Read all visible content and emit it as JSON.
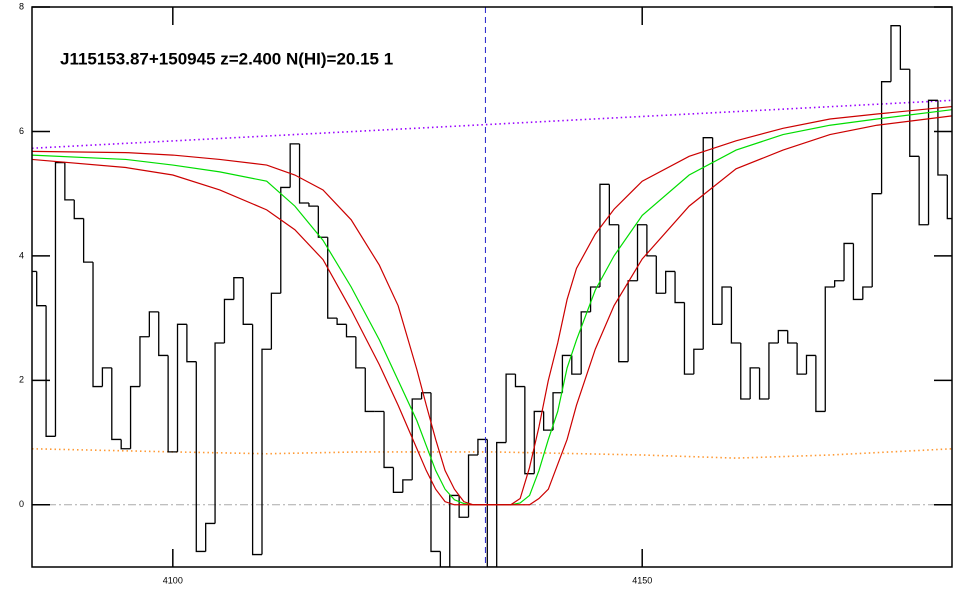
{
  "chart_data": {
    "type": "line",
    "title": "J115153.87+150945 z=2.400 N(HI)=20.15 1",
    "xlim": [
      4085,
      4183
    ],
    "ylim": [
      -1,
      8
    ],
    "xticks": [
      4100,
      4150
    ],
    "yticks": [
      0,
      2,
      4,
      6,
      8
    ],
    "hline": {
      "value": 0,
      "color": "#aaaaaa"
    },
    "vline": {
      "value": 4133.3,
      "color": "#2222cc"
    },
    "series": [
      {
        "color": "#ff9933",
        "style": "dotted",
        "x": [
          4085,
          4100,
          4110,
          4120,
          4134,
          4150,
          4160,
          4170,
          4183
        ],
        "values": [
          0.9,
          0.85,
          0.82,
          0.85,
          0.85,
          0.8,
          0.75,
          0.8,
          0.9
        ]
      },
      {
        "color": "#9900ff",
        "style": "dotted",
        "x": [
          4085,
          4183
        ],
        "values": [
          5.73,
          6.5
        ]
      },
      {
        "color": "#000000",
        "style": "steps",
        "x": [
          4085,
          4086,
          4087,
          4088,
          4089,
          4090,
          4091,
          4092,
          4093,
          4094,
          4095,
          4096,
          4097,
          4098,
          4099,
          4100,
          4101,
          4102,
          4103,
          4104,
          4105,
          4106,
          4107,
          4108,
          4109,
          4110,
          4111,
          4112,
          4113,
          4114,
          4115,
          4116,
          4117,
          4118,
          4119,
          4120,
          4121,
          4122,
          4123,
          4124,
          4125,
          4126,
          4127,
          4128,
          4129,
          4130,
          4131,
          4132,
          4133,
          4134,
          4135,
          4136,
          4137,
          4138,
          4139,
          4140,
          4141,
          4142,
          4143,
          4144,
          4145,
          4146,
          4147,
          4148,
          4149,
          4150,
          4151,
          4152,
          4153,
          4154,
          4155,
          4156,
          4157,
          4158,
          4159,
          4160,
          4161,
          4162,
          4163,
          4164,
          4165,
          4166,
          4167,
          4168,
          4169,
          4170,
          4171,
          4172,
          4173,
          4174,
          4175,
          4176,
          4177,
          4178,
          4179,
          4180,
          4181,
          4182,
          4183
        ],
        "values": [
          3.75,
          3.2,
          1.1,
          5.5,
          4.9,
          4.6,
          3.9,
          1.9,
          2.2,
          1.05,
          0.9,
          1.9,
          2.7,
          3.1,
          2.4,
          0.85,
          2.9,
          2.3,
          -0.75,
          -0.3,
          2.6,
          3.3,
          3.65,
          2.9,
          -0.8,
          2.5,
          3.4,
          5.1,
          5.8,
          4.85,
          4.8,
          4.3,
          3.0,
          2.9,
          2.7,
          2.2,
          1.5,
          1.5,
          0.6,
          0.2,
          0.4,
          1.7,
          1.8,
          -0.75,
          -1.0,
          0.15,
          -0.2,
          0.8,
          1.05,
          -1.0,
          1.0,
          2.1,
          1.9,
          0.5,
          1.5,
          1.2,
          1.8,
          2.4,
          2.1,
          3.1,
          3.5,
          5.15,
          4.5,
          2.3,
          3.6,
          4.5,
          4.0,
          3.4,
          3.75,
          3.25,
          2.1,
          2.5,
          5.9,
          2.9,
          3.5,
          2.6,
          1.7,
          2.2,
          1.7,
          2.6,
          2.8,
          2.6,
          2.1,
          2.4,
          1.5,
          3.5,
          3.6,
          4.2,
          3.3,
          3.5,
          5.0,
          6.8,
          7.7,
          7.0,
          5.6,
          4.5,
          6.5,
          5.3,
          4.6
        ]
      },
      {
        "color": "#00dd00",
        "style": "solid",
        "x": [
          4085,
          4095,
          4100,
          4105,
          4110,
          4113,
          4116,
          4119,
          4122,
          4124,
          4126,
          4127,
          4128,
          4129,
          4130,
          4131,
          4132,
          4134,
          4136,
          4137,
          4138,
          4139,
          4140,
          4141,
          4142,
          4143,
          4145,
          4147,
          4150,
          4155,
          4160,
          4165,
          4170,
          4175,
          4183
        ],
        "values": [
          5.62,
          5.55,
          5.46,
          5.35,
          5.2,
          4.8,
          4.25,
          3.5,
          2.65,
          2.0,
          1.35,
          0.95,
          0.55,
          0.25,
          0.08,
          0.02,
          0,
          0,
          0,
          0.03,
          0.15,
          0.55,
          1.05,
          1.5,
          2.2,
          2.65,
          3.45,
          4.0,
          4.65,
          5.3,
          5.7,
          5.95,
          6.1,
          6.2,
          6.35
        ]
      },
      {
        "color": "#cc0000",
        "style": "solid",
        "x": [
          4085,
          4095,
          4100,
          4105,
          4110,
          4113,
          4116,
          4119,
          4122,
          4124,
          4126,
          4127,
          4128,
          4129,
          4130,
          4131,
          4132,
          4134,
          4136,
          4137,
          4138,
          4139,
          4140,
          4141,
          4142,
          4143,
          4145,
          4147,
          4150,
          4155,
          4160,
          4165,
          4170,
          4175,
          4183
        ],
        "values": [
          5.68,
          5.66,
          5.62,
          5.55,
          5.46,
          5.3,
          5.06,
          4.58,
          3.85,
          3.2,
          2.17,
          1.6,
          1.05,
          0.55,
          0.25,
          0.05,
          0,
          0,
          0,
          0.1,
          0.6,
          1.25,
          2.0,
          2.6,
          3.3,
          3.8,
          4.35,
          4.75,
          5.2,
          5.6,
          5.85,
          6.05,
          6.2,
          6.28,
          6.4
        ]
      },
      {
        "color": "#cc0000",
        "style": "solid",
        "x": [
          4085,
          4095,
          4100,
          4105,
          4110,
          4113,
          4116,
          4119,
          4122,
          4124,
          4126,
          4127,
          4128,
          4129,
          4130,
          4131,
          4132,
          4134,
          4136,
          4137,
          4138,
          4139,
          4140,
          4141,
          4142,
          4143,
          4145,
          4147,
          4150,
          4155,
          4160,
          4165,
          4170,
          4175,
          4183
        ],
        "values": [
          5.55,
          5.42,
          5.3,
          5.06,
          4.74,
          4.42,
          3.94,
          3.13,
          2.25,
          1.6,
          0.9,
          0.55,
          0.25,
          0.05,
          0,
          0,
          0,
          0,
          0,
          0,
          0,
          0.1,
          0.25,
          0.65,
          1.05,
          1.6,
          2.5,
          3.2,
          3.95,
          4.8,
          5.4,
          5.7,
          5.95,
          6.1,
          6.25
        ]
      }
    ]
  }
}
